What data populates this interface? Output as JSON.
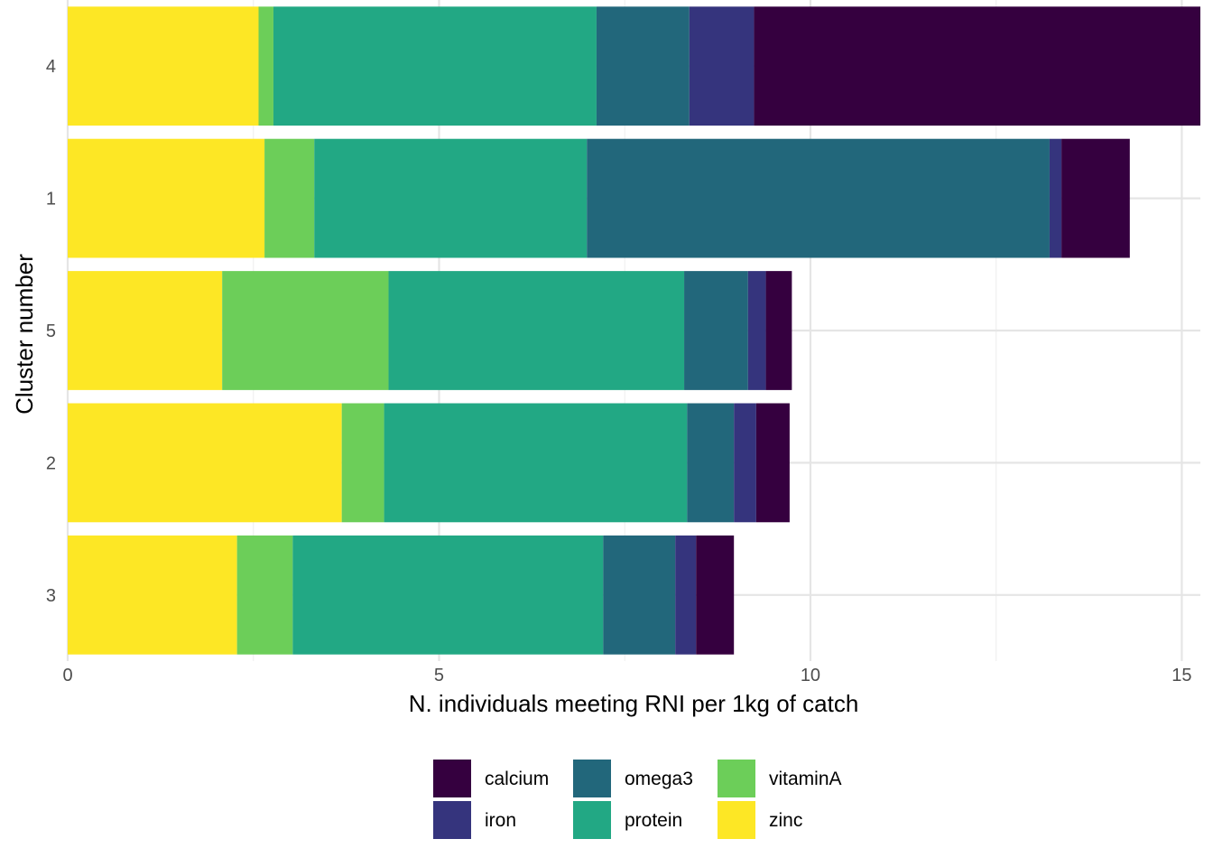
{
  "chart_data": {
    "type": "bar",
    "orientation": "horizontal",
    "stacked": true,
    "xlabel": "N. individuals meeting RNI per 1kg of catch",
    "ylabel": "Cluster number",
    "xlim": [
      0,
      15.25
    ],
    "x_ticks": [
      0,
      5,
      10,
      15
    ],
    "grid": true,
    "legend_position": "bottom",
    "categories": [
      "4",
      "1",
      "5",
      "2",
      "3"
    ],
    "series": [
      {
        "name": "zinc",
        "color": "#FDE725",
        "values": [
          2.57,
          2.65,
          2.08,
          3.69,
          2.28
        ]
      },
      {
        "name": "vitaminA",
        "color": "#6CCE59",
        "values": [
          0.2,
          0.67,
          2.24,
          0.57,
          0.75
        ]
      },
      {
        "name": "protein",
        "color": "#22A884",
        "values": [
          4.35,
          3.67,
          3.98,
          4.08,
          4.18
        ]
      },
      {
        "name": "omega3",
        "color": "#22677B",
        "values": [
          1.25,
          6.23,
          0.86,
          0.63,
          0.97
        ]
      },
      {
        "name": "iron",
        "color": "#35347D",
        "values": [
          0.87,
          0.16,
          0.24,
          0.3,
          0.28
        ]
      },
      {
        "name": "calcium",
        "color": "#35003F",
        "values": [
          6.01,
          0.92,
          0.35,
          0.45,
          0.51
        ]
      }
    ],
    "legend_order": [
      "calcium",
      "iron",
      "omega3",
      "protein",
      "vitaminA",
      "zinc"
    ]
  }
}
